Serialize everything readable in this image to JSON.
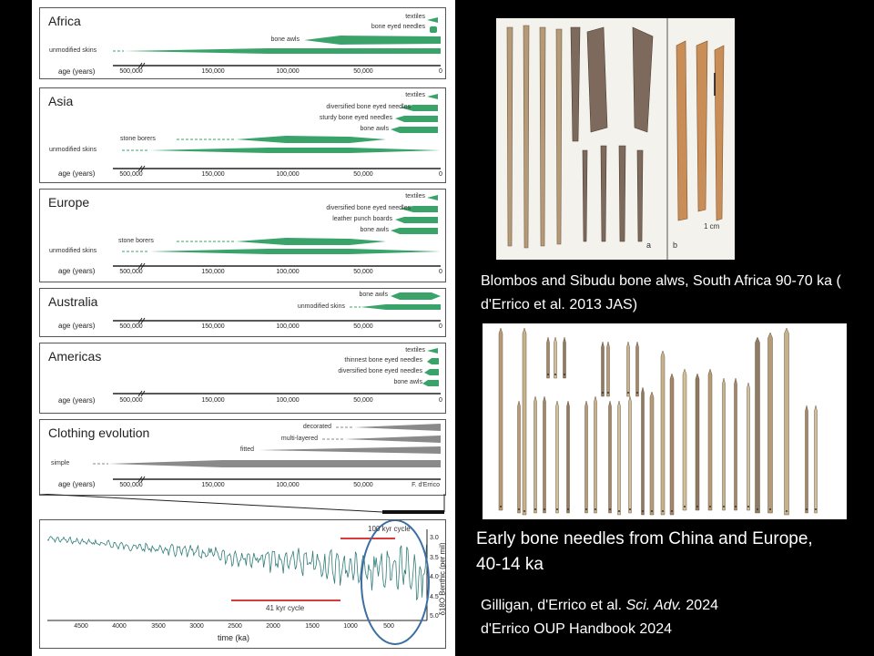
{
  "panels": {
    "africa": {
      "title": "Africa",
      "labels": [
        "textiles",
        "bone eyed needles",
        "bone awls",
        "unmodified skins"
      ]
    },
    "asia": {
      "title": "Asia",
      "labels": [
        "textiles",
        "diversified bone eyed needles",
        "sturdy bone eyed needles",
        "bone awls",
        "stone borers",
        "unmodified skins"
      ]
    },
    "europe": {
      "title": "Europe",
      "labels": [
        "textiles",
        "diversified bone eyed needles",
        "leather punch boards",
        "bone awls",
        "stone borers",
        "unmodified skins"
      ]
    },
    "australia": {
      "title": "Australia",
      "labels": [
        "bone awls",
        "unmodified skins"
      ]
    },
    "americas": {
      "title": "Americas",
      "labels": [
        "textiles",
        "thinnest bone eyed needles",
        "diversified bone eyed needles",
        "bone awls"
      ]
    },
    "clothing": {
      "title": "Clothing evolution",
      "labels": [
        "decorated",
        "multi-layered",
        "fitted",
        "simple"
      ],
      "credit": "F. d'Errico"
    }
  },
  "axis": {
    "label": "age (years)",
    "ticks": [
      "500,000",
      "150,000",
      "100,000",
      "50,000",
      "0"
    ]
  },
  "benthic": {
    "xlabel": "time (ka)",
    "xticks": [
      "4500",
      "4000",
      "3500",
      "3000",
      "2500",
      "2000",
      "1500",
      "1000",
      "500"
    ],
    "ylabel": "δ18O Benthic (per mil)",
    "yticks": [
      "3.0",
      "3.5",
      "4.0",
      "4.5",
      "5.0"
    ],
    "cycle100": "100 kyr cycle",
    "cycle41": "41 kyr cycle"
  },
  "photo1": {
    "label_a": "a",
    "label_b": "b",
    "scale": "1 cm"
  },
  "captions": {
    "blombos": "Blombos and Sibudu bone alws, South Africa 90-70 ka ( d'Errico et al. 2013 JAS)",
    "needles": "Early bone needles from China and Europe, 40-14 ka",
    "ref1_authors": "Gilligan, d'Errico et al.",
    "ref1_journal": "Sci. Adv.",
    "ref1_year": "2024",
    "ref2": "d'Errico OUP Handbook 2024"
  },
  "colors": {
    "green": "#3aa36a",
    "gray": "#8a8a8a",
    "red": "#d93b3b",
    "blue": "#3a6ea5",
    "curve": "#2f7d79"
  }
}
